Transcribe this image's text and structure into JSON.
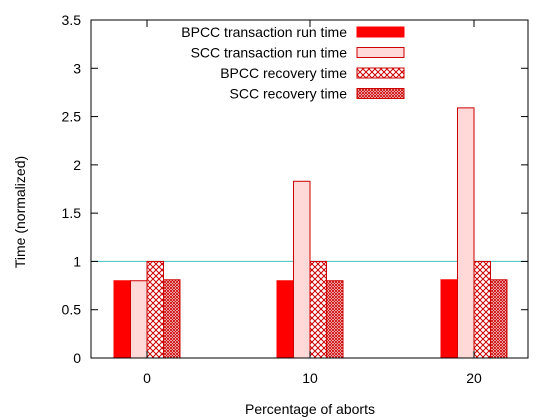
{
  "chart_data": {
    "type": "bar",
    "xlabel": "Percentage of aborts",
    "ylabel": "Time (normalized)",
    "categories": [
      "0",
      "10",
      "20"
    ],
    "ylim": [
      0,
      3.5
    ],
    "yticks": [
      "0",
      "0.5",
      "1",
      "1.5",
      "2",
      "2.5",
      "3",
      "3.5"
    ],
    "grid": false,
    "legend_position": "top-center",
    "reference_line": {
      "y": 1.0,
      "color": "#40c0c0"
    },
    "series": [
      {
        "name": "BPCC transaction run time",
        "values": [
          0.8,
          0.8,
          0.81
        ],
        "fill": "#ff0000",
        "pattern": "solid"
      },
      {
        "name": "SCC transaction run time",
        "values": [
          0.8,
          1.83,
          2.59
        ],
        "fill": "#ffd8d8",
        "pattern": "light"
      },
      {
        "name": "BPCC recovery time",
        "values": [
          1.0,
          1.0,
          1.0
        ],
        "fill": "#cc0000",
        "pattern": "crosshatch"
      },
      {
        "name": "SCC recovery time",
        "values": [
          0.81,
          0.8,
          0.81
        ],
        "fill": "#cc0000",
        "pattern": "dense"
      }
    ],
    "colors": {
      "edge": "#cc0000",
      "axis": "#000000"
    }
  }
}
